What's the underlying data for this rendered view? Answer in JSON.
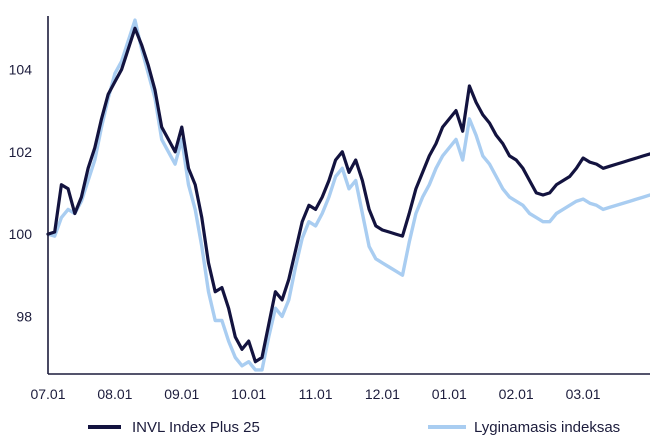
{
  "chart_data": {
    "type": "line",
    "title": "",
    "xlabel": "",
    "ylabel": "",
    "ylim": [
      96.6,
      105.3
    ],
    "x_tick_labels": [
      "07.01",
      "08.01",
      "09.01",
      "10.01",
      "11.01",
      "12.01",
      "01.01",
      "02.01",
      "03.01"
    ],
    "y_ticks": [
      98,
      100,
      102,
      104
    ],
    "y_tick_labels": [
      "98",
      "100",
      "102",
      "104"
    ],
    "grid": false,
    "legend_position": "bottom",
    "colors": {
      "axis": "#1c1c3c",
      "text": "#1c1c3c"
    },
    "x": [
      0,
      0.1,
      0.2,
      0.3,
      0.4,
      0.5,
      0.6,
      0.7,
      0.8,
      0.9,
      1,
      1.1,
      1.2,
      1.3,
      1.4,
      1.5,
      1.6,
      1.7,
      1.8,
      1.9,
      2,
      2.1,
      2.2,
      2.3,
      2.4,
      2.5,
      2.6,
      2.7,
      2.8,
      2.9,
      3,
      3.1,
      3.2,
      3.3,
      3.4,
      3.5,
      3.6,
      3.7,
      3.8,
      3.9,
      4,
      4.1,
      4.2,
      4.3,
      4.4,
      4.5,
      4.6,
      4.7,
      4.8,
      4.9,
      5,
      5.1,
      5.2,
      5.3,
      5.4,
      5.5,
      5.6,
      5.7,
      5.8,
      5.9,
      6,
      6.1,
      6.2,
      6.3,
      6.4,
      6.5,
      6.6,
      6.7,
      6.8,
      6.9,
      7,
      7.1,
      7.2,
      7.3,
      7.4,
      7.5,
      7.6,
      7.7,
      7.8,
      7.9,
      8,
      8.1,
      8.2,
      8.3,
      8.4,
      8.5,
      8.6,
      8.7,
      8.8,
      8.9,
      9.0
    ],
    "series": [
      {
        "name": "INVL Index Plus 25",
        "color": "#13133f",
        "values": [
          100.0,
          100.05,
          101.2,
          101.1,
          100.5,
          100.9,
          101.6,
          102.1,
          102.8,
          103.4,
          103.7,
          104.0,
          104.5,
          105.0,
          104.6,
          104.1,
          103.5,
          102.6,
          102.3,
          102.0,
          102.6,
          101.6,
          101.2,
          100.4,
          99.3,
          98.6,
          98.7,
          98.2,
          97.5,
          97.2,
          97.4,
          96.9,
          97.0,
          97.8,
          98.6,
          98.4,
          98.9,
          99.6,
          100.3,
          100.7,
          100.6,
          100.9,
          101.3,
          101.8,
          102.0,
          101.5,
          101.8,
          101.3,
          100.6,
          100.2,
          100.1,
          100.05,
          100.0,
          99.95,
          100.5,
          101.1,
          101.5,
          101.9,
          102.2,
          102.6,
          102.8,
          103.0,
          102.5,
          103.6,
          103.2,
          102.9,
          102.7,
          102.4,
          102.2,
          101.9,
          101.8,
          101.6,
          101.3,
          101.0,
          100.95,
          101.0,
          101.2,
          101.3,
          101.4,
          101.6,
          101.85,
          101.75,
          101.7,
          101.6,
          101.65,
          101.7,
          101.75,
          101.8,
          101.85,
          101.9,
          101.95
        ]
      },
      {
        "name": "Lyginamasis indeksas",
        "color": "#a9cdf1",
        "values": [
          100.0,
          99.95,
          100.4,
          100.6,
          100.5,
          100.8,
          101.3,
          101.8,
          102.6,
          103.3,
          103.9,
          104.2,
          104.7,
          105.2,
          104.5,
          103.9,
          103.3,
          102.3,
          102.0,
          101.7,
          102.3,
          101.2,
          100.6,
          99.7,
          98.6,
          97.9,
          97.9,
          97.4,
          97.0,
          96.8,
          96.9,
          96.7,
          96.7,
          97.5,
          98.2,
          98.0,
          98.4,
          99.2,
          99.9,
          100.3,
          100.2,
          100.5,
          100.9,
          101.4,
          101.6,
          101.1,
          101.3,
          100.5,
          99.7,
          99.4,
          99.3,
          99.2,
          99.1,
          99.0,
          99.8,
          100.5,
          100.9,
          101.2,
          101.6,
          101.9,
          102.1,
          102.3,
          101.8,
          102.8,
          102.4,
          101.9,
          101.7,
          101.4,
          101.1,
          100.9,
          100.8,
          100.7,
          100.5,
          100.4,
          100.3,
          100.3,
          100.5,
          100.6,
          100.7,
          100.8,
          100.85,
          100.75,
          100.7,
          100.6,
          100.65,
          100.7,
          100.75,
          100.8,
          100.85,
          100.9,
          100.95
        ]
      }
    ]
  }
}
